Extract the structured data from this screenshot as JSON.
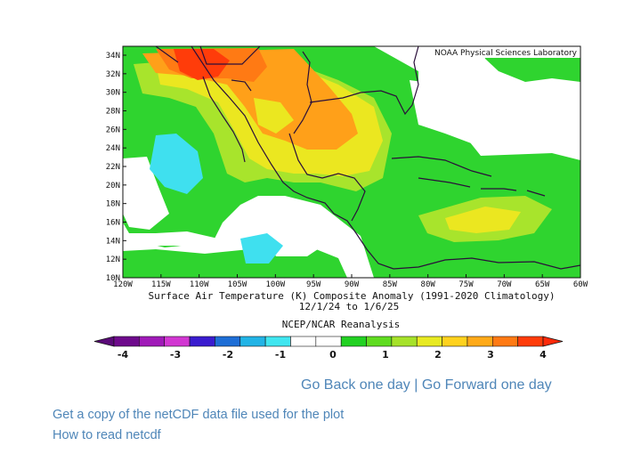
{
  "map": {
    "credit": "NOAA Physical Sciences Laboratory",
    "lat_labels": [
      "34N",
      "32N",
      "30N",
      "28N",
      "26N",
      "24N",
      "22N",
      "20N",
      "18N",
      "16N",
      "14N",
      "12N",
      "10N"
    ],
    "lon_labels": [
      "120W",
      "115W",
      "110W",
      "105W",
      "100W",
      "95W",
      "90W",
      "85W",
      "80W",
      "75W",
      "70W",
      "65W",
      "60W"
    ],
    "caption_line1": "Surface Air Temperature (K) Composite Anomaly (1991-2020 Climatology)",
    "caption_line2": "12/1/24  to 1/6/25",
    "caption_line3": "NCEP/NCAR Reanalysis"
  },
  "colorbar": {
    "labels": [
      "-4",
      "-3",
      "-2",
      "-1",
      "0",
      "1",
      "2",
      "3",
      "4"
    ],
    "colors": [
      "#6e0a8c",
      "#a01ab8",
      "#d237d2",
      "#3a1ccf",
      "#1e6ed6",
      "#22b4e6",
      "#40e6f0",
      "#ffffff",
      "#ffffff",
      "#22d122",
      "#5fdc20",
      "#a6e22a",
      "#e8ea22",
      "#ffd21e",
      "#ffaa19",
      "#ff7a14",
      "#ff3c0a"
    ],
    "arrow_left_color": "#5a0a78",
    "arrow_right_color": "#ff2a0a"
  },
  "links": {
    "back": "Go Back one day",
    "separator": "|",
    "forward": "Go Forward one day",
    "netcdf": "Get a copy of the netCDF data file used for the plot",
    "howto": "How to read netcdf"
  }
}
